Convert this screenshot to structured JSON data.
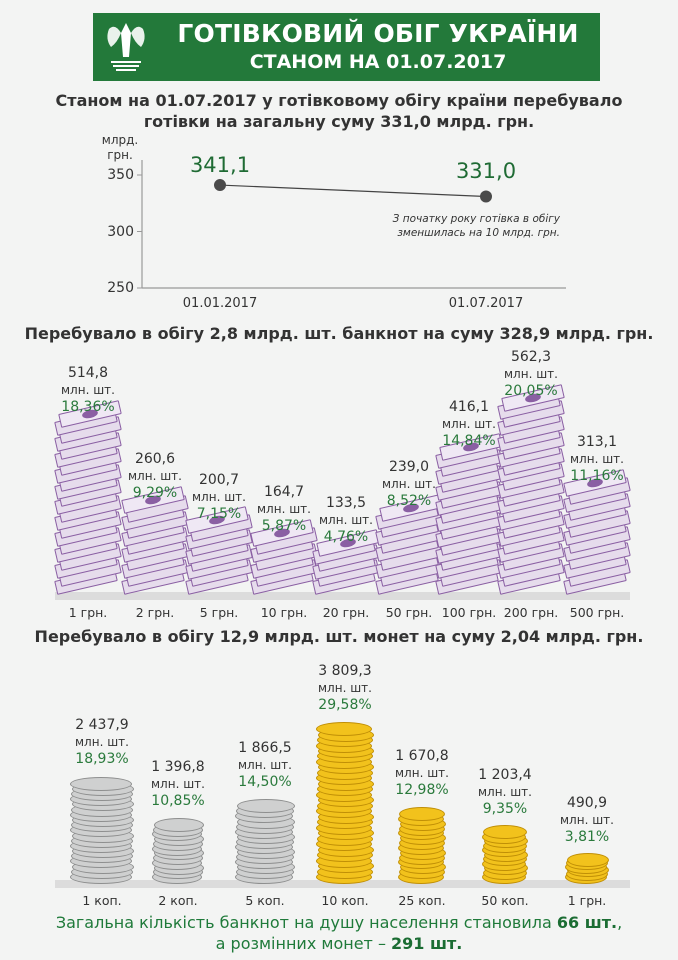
{
  "header": {
    "title": "ГОТІВКОВИЙ ОБІГ УКРАЇНИ",
    "subtitle": "СТАНОМ НА 01.07.2017",
    "logo_text": "НАЦІОНАЛЬНИЙ БАНК УКРАЇНИ",
    "color": "#23793a"
  },
  "intro": {
    "line1": "Станом  на 01.07.2017 у готівковому обігу країни перебувало",
    "line2": "готівки на загальну суму 331,0 млрд. грн."
  },
  "chart_data": [
    {
      "type": "line",
      "ylabel_line1": "млрд.",
      "ylabel_line2": "грн.",
      "ylim": [
        250,
        350
      ],
      "yticks": [
        "350",
        "300",
        "250"
      ],
      "categories": [
        "01.01.2017",
        "01.07.2017"
      ],
      "values": [
        341.1,
        331.0
      ],
      "value_labels": [
        "341,1",
        "331,0"
      ],
      "annotation_line1": "З початку року готівка в обігу",
      "annotation_line2": "зменшилась на 10  млрд. грн.",
      "grid": false
    },
    {
      "type": "bar",
      "title": "Перебувало в обігу 2,8 млрд. шт. банкнот на суму 328,9 млрд. грн.",
      "unit": "млн. шт.",
      "categories": [
        "1 грн.",
        "2 грн.",
        "5 грн.",
        "10 грн.",
        "20 грн.",
        "50 грн.",
        "100 грн.",
        "200 грн.",
        "500 грн."
      ],
      "values": [
        514.8,
        260.6,
        200.7,
        164.7,
        133.5,
        239.0,
        416.1,
        562.3,
        313.1
      ],
      "value_labels": [
        "514,8",
        "260,6",
        "200,7",
        "164,7",
        "133,5",
        "239,0",
        "416,1",
        "562,3",
        "313,1"
      ],
      "percent_labels": [
        "18,36%",
        "9,29%",
        "7,15%",
        "5,87%",
        "4,76%",
        "8,52%",
        "14,84%",
        "20,05%",
        "11,16%"
      ],
      "color": "#8a5fa3"
    },
    {
      "type": "bar",
      "title": "Перебувало в обігу 12,9 млрд. шт. монет на суму 2,04 млрд. грн.",
      "unit": "млн. шт.",
      "categories": [
        "1 коп.",
        "2 коп.",
        "5 коп.",
        "10 коп.",
        "25 коп.",
        "50 коп.",
        "1 грн."
      ],
      "values": [
        2437.9,
        1396.8,
        1866.5,
        3809.3,
        1670.8,
        1203.4,
        490.9
      ],
      "value_labels": [
        "2 437,9",
        "1 396,8",
        "1 866,5",
        "3 809,3",
        "1 670,8",
        "1 203,4",
        "490,9"
      ],
      "percent_labels": [
        "18,93%",
        "10,85%",
        "14,50%",
        "29,58%",
        "12,98%",
        "9,35%",
        "3,81%"
      ],
      "metals": [
        "silver",
        "silver",
        "silver",
        "gold",
        "gold",
        "gold",
        "gold"
      ]
    }
  ],
  "footer": {
    "line1_text": "Загальна кількість банкнот на душу населення становила ",
    "line1_bold": "66 шт.",
    "line1_end": ",",
    "line2_text": "а розмінних монет – ",
    "line2_bold": "291  шт."
  }
}
